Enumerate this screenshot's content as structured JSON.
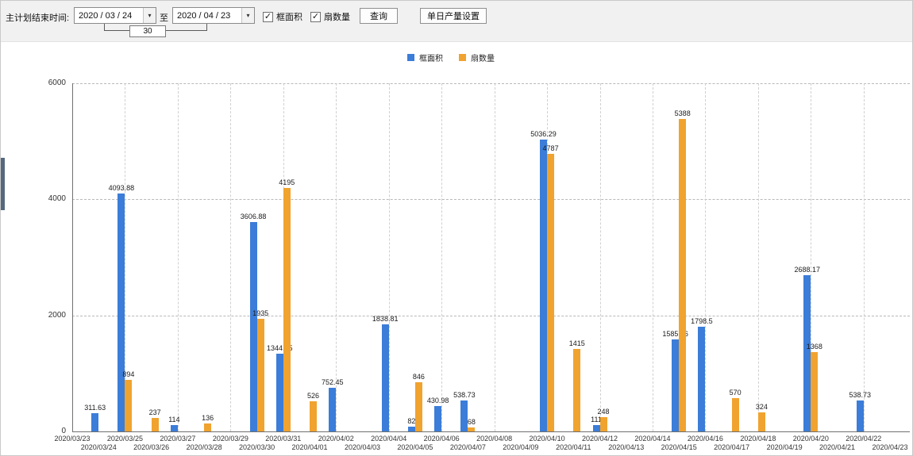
{
  "toolbar": {
    "plan_end_label": "主计划结束时间:",
    "start_date": "2020 / 03 / 24",
    "to_label": "至",
    "end_date": "2020 / 04 / 23",
    "days_between": "30",
    "area_checkbox_label": "框面积",
    "fan_checkbox_label": "扇数量",
    "query_button_label": "查询",
    "daily_output_button_label": "单日产量设置"
  },
  "legend": {
    "area_label": "框面积",
    "fan_label": "扇数量"
  },
  "icons": {
    "chevron_down": "▾",
    "checkmark": "✓"
  },
  "colors": {
    "area_series": "#3b7dd8",
    "fan_series": "#f0a32f",
    "axis": "#707070",
    "grid": "#b8b8b8"
  },
  "chart_data": {
    "type": "bar",
    "title": "",
    "xlabel": "",
    "ylabel": "",
    "ylim": [
      0,
      6000
    ],
    "yticks": [
      0,
      2000,
      4000,
      6000
    ],
    "grid": "dashed",
    "legend_position": "top",
    "categories": [
      "2020/03/23",
      "2020/03/24",
      "2020/03/25",
      "2020/03/26",
      "2020/03/27",
      "2020/03/28",
      "2020/03/29",
      "2020/03/30",
      "2020/03/31",
      "2020/04/01",
      "2020/04/02",
      "2020/04/03",
      "2020/04/04",
      "2020/04/05",
      "2020/04/06",
      "2020/04/07",
      "2020/04/08",
      "2020/04/09",
      "2020/04/10",
      "2020/04/11",
      "2020/04/12",
      "2020/04/13",
      "2020/04/14",
      "2020/04/15",
      "2020/04/16",
      "2020/04/17",
      "2020/04/18",
      "2020/04/19",
      "2020/04/20",
      "2020/04/21",
      "2020/04/22",
      "2020/04/23"
    ],
    "series": [
      {
        "name": "框面积",
        "color": "#3b7dd8",
        "values": [
          null,
          311.63,
          4093.88,
          null,
          114,
          null,
          null,
          3606.88,
          1344.95,
          null,
          752.45,
          null,
          1838.81,
          82,
          430.98,
          538.73,
          null,
          null,
          5036.29,
          null,
          111,
          null,
          null,
          1585.96,
          1798.5,
          null,
          null,
          null,
          2688.17,
          null,
          538.73,
          null
        ]
      },
      {
        "name": "扇数量",
        "color": "#f0a32f",
        "values": [
          null,
          null,
          894,
          237,
          null,
          136,
          null,
          1935,
          4195,
          526,
          null,
          null,
          null,
          846,
          null,
          68,
          null,
          null,
          4787,
          1415,
          248,
          null,
          null,
          5388,
          null,
          570,
          324,
          null,
          1368,
          null,
          null,
          null
        ]
      }
    ]
  }
}
